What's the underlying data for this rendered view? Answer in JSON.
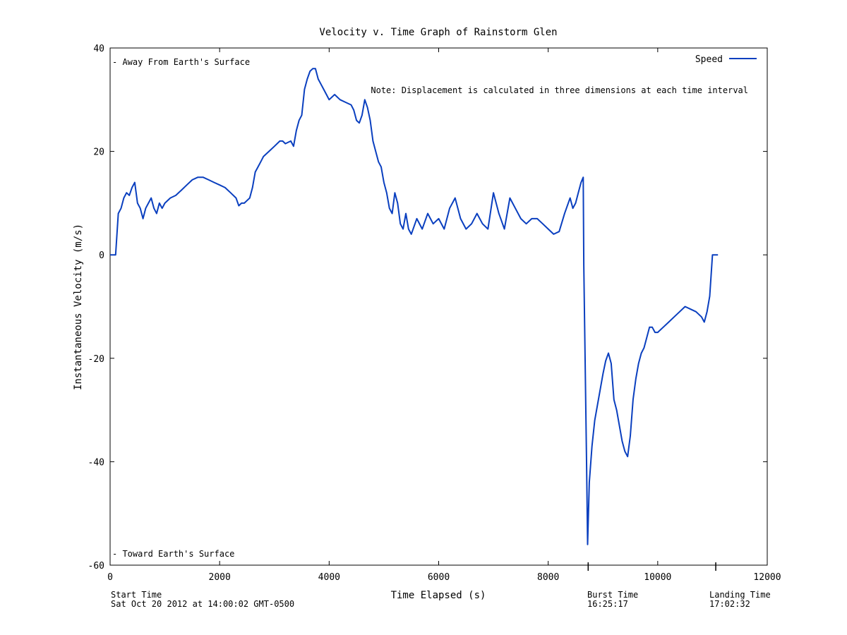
{
  "chart_data": {
    "type": "line",
    "title": "Velocity v. Time Graph of Rainstorm Glen",
    "xlabel": "Time Elapsed (s)",
    "ylabel": "Instantaneous Velocity (m/s)",
    "xlim": [
      0,
      12000
    ],
    "ylim": [
      -60,
      40
    ],
    "xticks": [
      0,
      2000,
      4000,
      6000,
      8000,
      10000,
      12000
    ],
    "yticks": [
      -60,
      -40,
      -20,
      0,
      20,
      40
    ],
    "grid": false,
    "legend": {
      "position": "top-right",
      "entries": [
        "Speed"
      ]
    },
    "annotations": {
      "top_left": "- Away From Earth's Surface",
      "bottom_left": "- Toward Earth's Surface",
      "note": "Note: Displacement is calculated in three dimensions at each time interval"
    },
    "event_ticks": [
      8730,
      11060
    ],
    "footer": {
      "start_label": "Start Time",
      "start_value": "Sat Oct 20 2012 at 14:00:02 GMT-0500",
      "burst_label": "Burst Time",
      "burst_value": "16:25:17",
      "landing_label": "Landing Time",
      "landing_value": "17:02:32"
    },
    "series": [
      {
        "name": "Speed",
        "color": "#0a3fbf",
        "points": [
          [
            0,
            0
          ],
          [
            100,
            0
          ],
          [
            150,
            8
          ],
          [
            200,
            9
          ],
          [
            250,
            11
          ],
          [
            300,
            12
          ],
          [
            350,
            11.5
          ],
          [
            400,
            13
          ],
          [
            450,
            14
          ],
          [
            500,
            10
          ],
          [
            550,
            9
          ],
          [
            600,
            7
          ],
          [
            650,
            9
          ],
          [
            700,
            10
          ],
          [
            750,
            11
          ],
          [
            800,
            9
          ],
          [
            850,
            8
          ],
          [
            900,
            10
          ],
          [
            950,
            9
          ],
          [
            1000,
            10
          ],
          [
            1100,
            11
          ],
          [
            1200,
            11.5
          ],
          [
            1300,
            12.5
          ],
          [
            1400,
            13.5
          ],
          [
            1500,
            14.5
          ],
          [
            1600,
            15
          ],
          [
            1700,
            15
          ],
          [
            1800,
            14.5
          ],
          [
            1900,
            14
          ],
          [
            2000,
            13.5
          ],
          [
            2100,
            13
          ],
          [
            2200,
            12
          ],
          [
            2300,
            11
          ],
          [
            2350,
            9.5
          ],
          [
            2400,
            10
          ],
          [
            2450,
            10
          ],
          [
            2500,
            10.5
          ],
          [
            2550,
            11
          ],
          [
            2600,
            13
          ],
          [
            2650,
            16
          ],
          [
            2700,
            17
          ],
          [
            2750,
            18
          ],
          [
            2800,
            19
          ],
          [
            2900,
            20
          ],
          [
            3000,
            21
          ],
          [
            3100,
            22
          ],
          [
            3150,
            22
          ],
          [
            3200,
            21.5
          ],
          [
            3300,
            22
          ],
          [
            3350,
            21
          ],
          [
            3400,
            24
          ],
          [
            3450,
            26
          ],
          [
            3500,
            27
          ],
          [
            3550,
            32
          ],
          [
            3600,
            34
          ],
          [
            3650,
            35.5
          ],
          [
            3700,
            36
          ],
          [
            3750,
            36
          ],
          [
            3800,
            34
          ],
          [
            3850,
            33
          ],
          [
            3900,
            32
          ],
          [
            3950,
            31
          ],
          [
            4000,
            30
          ],
          [
            4100,
            31
          ],
          [
            4200,
            30
          ],
          [
            4300,
            29.5
          ],
          [
            4400,
            29
          ],
          [
            4450,
            28
          ],
          [
            4500,
            26
          ],
          [
            4550,
            25.5
          ],
          [
            4600,
            27
          ],
          [
            4650,
            30
          ],
          [
            4700,
            28.5
          ],
          [
            4750,
            26
          ],
          [
            4800,
            22
          ],
          [
            4850,
            20
          ],
          [
            4900,
            18
          ],
          [
            4950,
            17
          ],
          [
            5000,
            14
          ],
          [
            5050,
            12
          ],
          [
            5100,
            9
          ],
          [
            5150,
            8
          ],
          [
            5200,
            12
          ],
          [
            5250,
            10
          ],
          [
            5300,
            6
          ],
          [
            5350,
            5
          ],
          [
            5400,
            8
          ],
          [
            5450,
            5
          ],
          [
            5500,
            4
          ],
          [
            5600,
            7
          ],
          [
            5700,
            5
          ],
          [
            5800,
            8
          ],
          [
            5900,
            6
          ],
          [
            6000,
            7
          ],
          [
            6100,
            5
          ],
          [
            6200,
            9
          ],
          [
            6300,
            11
          ],
          [
            6400,
            7
          ],
          [
            6500,
            5
          ],
          [
            6600,
            6
          ],
          [
            6700,
            8
          ],
          [
            6800,
            6
          ],
          [
            6900,
            5
          ],
          [
            7000,
            12
          ],
          [
            7100,
            8
          ],
          [
            7200,
            5
          ],
          [
            7300,
            11
          ],
          [
            7400,
            9
          ],
          [
            7500,
            7
          ],
          [
            7600,
            6
          ],
          [
            7700,
            7
          ],
          [
            7800,
            7
          ],
          [
            7900,
            6
          ],
          [
            8000,
            5
          ],
          [
            8100,
            4
          ],
          [
            8200,
            4.5
          ],
          [
            8300,
            8
          ],
          [
            8400,
            11
          ],
          [
            8450,
            9
          ],
          [
            8500,
            10
          ],
          [
            8550,
            12
          ],
          [
            8600,
            14
          ],
          [
            8640,
            15
          ],
          [
            8650,
            -2
          ],
          [
            8700,
            -40
          ],
          [
            8720,
            -56
          ],
          [
            8750,
            -44
          ],
          [
            8800,
            -37
          ],
          [
            8850,
            -32
          ],
          [
            8900,
            -29
          ],
          [
            8950,
            -26
          ],
          [
            9000,
            -23
          ],
          [
            9050,
            -20.5
          ],
          [
            9100,
            -19
          ],
          [
            9150,
            -21
          ],
          [
            9200,
            -28
          ],
          [
            9250,
            -30
          ],
          [
            9300,
            -33
          ],
          [
            9350,
            -36
          ],
          [
            9400,
            -38
          ],
          [
            9450,
            -39
          ],
          [
            9500,
            -35
          ],
          [
            9550,
            -28
          ],
          [
            9600,
            -24
          ],
          [
            9650,
            -21
          ],
          [
            9700,
            -19
          ],
          [
            9750,
            -18
          ],
          [
            9800,
            -16
          ],
          [
            9850,
            -14
          ],
          [
            9900,
            -14
          ],
          [
            9950,
            -15
          ],
          [
            10000,
            -15
          ],
          [
            10100,
            -14
          ],
          [
            10200,
            -13
          ],
          [
            10300,
            -12
          ],
          [
            10400,
            -11
          ],
          [
            10500,
            -10
          ],
          [
            10600,
            -10.5
          ],
          [
            10700,
            -11
          ],
          [
            10800,
            -12
          ],
          [
            10850,
            -13
          ],
          [
            10900,
            -11
          ],
          [
            10950,
            -8
          ],
          [
            11000,
            0
          ],
          [
            11100,
            0
          ]
        ]
      }
    ]
  }
}
